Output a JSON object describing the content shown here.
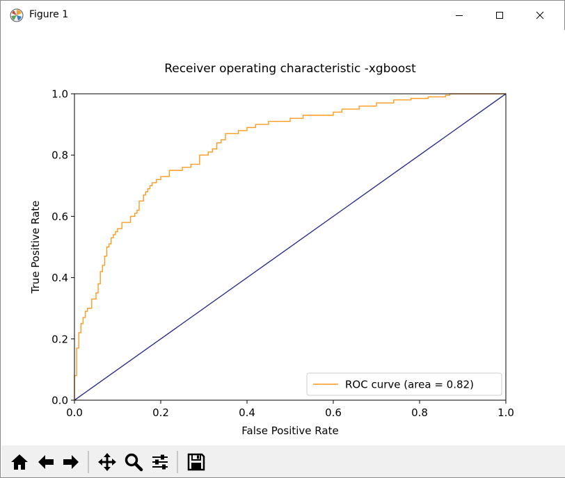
{
  "window": {
    "title": "Figure 1"
  },
  "colors": {
    "roc": "#ff9a1f",
    "diagonal": "#2b2e8f",
    "axes": "#000000"
  },
  "toolbar": {
    "icons": [
      "home-icon",
      "back-arrow-icon",
      "forward-arrow-icon",
      "pan-icon",
      "zoom-icon",
      "configure-subplots-icon",
      "save-icon"
    ]
  },
  "chart_data": {
    "type": "line",
    "title": "Receiver operating characteristic -xgboost",
    "xlabel": "False Positive Rate",
    "ylabel": "True Positive Rate",
    "xlim": [
      0.0,
      1.0
    ],
    "ylim": [
      0.0,
      1.0
    ],
    "xticks": [
      "0.0",
      "0.2",
      "0.4",
      "0.6",
      "0.8",
      "1.0"
    ],
    "yticks": [
      "0.0",
      "0.2",
      "0.4",
      "0.6",
      "0.8",
      "1.0"
    ],
    "legend": {
      "placement": "lower-right",
      "entries": [
        "ROC curve (area = 0.82)"
      ]
    },
    "grid": false,
    "series": [
      {
        "name": "ROC curve (area = 0.82)",
        "step": true,
        "x": [
          0.0,
          0.0,
          0.005,
          0.005,
          0.01,
          0.01,
          0.015,
          0.015,
          0.02,
          0.02,
          0.025,
          0.025,
          0.03,
          0.03,
          0.04,
          0.04,
          0.05,
          0.05,
          0.055,
          0.055,
          0.06,
          0.06,
          0.065,
          0.065,
          0.07,
          0.07,
          0.075,
          0.075,
          0.08,
          0.08,
          0.085,
          0.085,
          0.09,
          0.09,
          0.095,
          0.095,
          0.1,
          0.1,
          0.11,
          0.11,
          0.13,
          0.13,
          0.14,
          0.14,
          0.145,
          0.145,
          0.15,
          0.15,
          0.16,
          0.16,
          0.165,
          0.165,
          0.17,
          0.17,
          0.175,
          0.175,
          0.18,
          0.18,
          0.19,
          0.19,
          0.2,
          0.2,
          0.22,
          0.22,
          0.25,
          0.25,
          0.27,
          0.27,
          0.29,
          0.29,
          0.31,
          0.31,
          0.32,
          0.32,
          0.33,
          0.33,
          0.34,
          0.34,
          0.35,
          0.35,
          0.38,
          0.38,
          0.4,
          0.4,
          0.42,
          0.42,
          0.45,
          0.45,
          0.5,
          0.5,
          0.53,
          0.53,
          0.6,
          0.6,
          0.62,
          0.62,
          0.66,
          0.66,
          0.7,
          0.7,
          0.74,
          0.74,
          0.78,
          0.78,
          0.82,
          0.82,
          0.86,
          0.86,
          0.87,
          0.87,
          1.0
        ],
        "y": [
          0.0,
          0.08,
          0.08,
          0.17,
          0.17,
          0.22,
          0.22,
          0.25,
          0.25,
          0.27,
          0.27,
          0.29,
          0.29,
          0.3,
          0.3,
          0.33,
          0.33,
          0.35,
          0.35,
          0.38,
          0.38,
          0.42,
          0.42,
          0.44,
          0.44,
          0.47,
          0.47,
          0.5,
          0.5,
          0.51,
          0.51,
          0.53,
          0.53,
          0.54,
          0.54,
          0.55,
          0.55,
          0.56,
          0.56,
          0.58,
          0.58,
          0.6,
          0.6,
          0.61,
          0.61,
          0.62,
          0.62,
          0.65,
          0.65,
          0.67,
          0.67,
          0.68,
          0.68,
          0.69,
          0.69,
          0.7,
          0.7,
          0.71,
          0.71,
          0.72,
          0.72,
          0.73,
          0.73,
          0.75,
          0.75,
          0.76,
          0.76,
          0.77,
          0.77,
          0.8,
          0.8,
          0.81,
          0.81,
          0.82,
          0.82,
          0.84,
          0.84,
          0.85,
          0.85,
          0.87,
          0.87,
          0.88,
          0.88,
          0.89,
          0.89,
          0.9,
          0.9,
          0.91,
          0.91,
          0.92,
          0.92,
          0.93,
          0.93,
          0.94,
          0.94,
          0.95,
          0.95,
          0.96,
          0.96,
          0.97,
          0.97,
          0.98,
          0.98,
          0.985,
          0.985,
          0.99,
          0.99,
          0.995,
          0.995,
          1.0,
          1.0
        ]
      },
      {
        "name": "",
        "x": [
          0.0,
          1.0
        ],
        "y": [
          0.0,
          1.0
        ]
      }
    ]
  }
}
